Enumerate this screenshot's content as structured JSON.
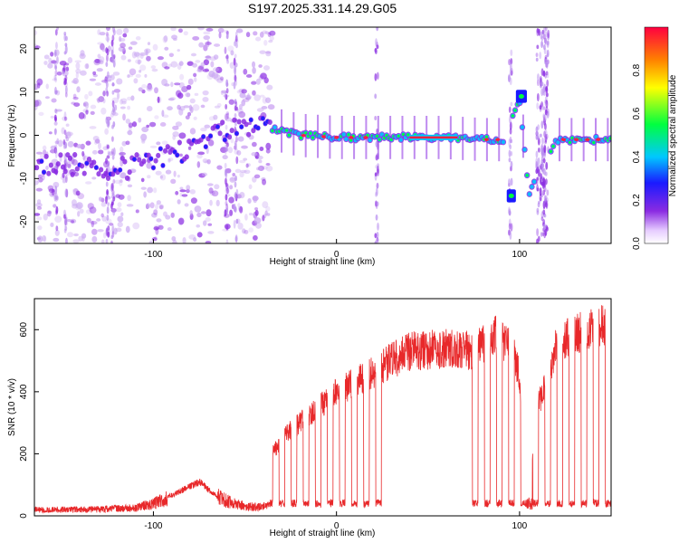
{
  "title": "S197.2025.331.14.29.G05",
  "colors": {
    "snr_line": "#e8282a",
    "spectro_rim": "#8a2be2",
    "background": "#ffffff"
  },
  "chart_data": [
    {
      "type": "heatmap",
      "name": "spectrogram",
      "xlabel": "Height of straight line (km)",
      "ylabel": "Frequency (Hz)",
      "xlim": [
        -165,
        150
      ],
      "ylim": [
        -25,
        25
      ],
      "x_ticks": [
        -100,
        0,
        100
      ],
      "y_ticks": [
        -20,
        -10,
        0,
        10,
        20
      ],
      "colorbar": {
        "label": "Normalized spectral amplitude",
        "range": [
          0,
          1
        ],
        "ticks": [
          "0.0",
          "0.2",
          "0.4",
          "0.6",
          "0.8"
        ],
        "colormap": "rainbow"
      },
      "ridge": {
        "x": [
          -165,
          -140,
          -120,
          -100,
          -80,
          -60,
          -45,
          -30,
          -20,
          0,
          20,
          40,
          60,
          80,
          92,
          100,
          105,
          120,
          150
        ],
        "y": [
          -7,
          -7,
          -8,
          -6,
          -3,
          1,
          3,
          1,
          0,
          -0.5,
          -0.5,
          -0.5,
          -0.5,
          -1,
          -1,
          9,
          -14,
          -1,
          -1
        ]
      },
      "gaps_km": [
        [
          92,
          96
        ],
        [
          108,
          117
        ]
      ],
      "side_bands": [
        {
          "x": [
            93,
            98
          ],
          "y": -14
        },
        {
          "x": [
            98,
            104
          ],
          "y": 9
        }
      ]
    },
    {
      "type": "line",
      "name": "snr",
      "xlabel": "Height of straight line (km)",
      "ylabel": "SNR (10 * v/v)",
      "xlim": [
        -165,
        150
      ],
      "ylim": [
        0,
        700
      ],
      "x_ticks": [
        -100,
        0,
        100
      ],
      "y_ticks": [
        0,
        200,
        400,
        600
      ],
      "envelope": {
        "x": [
          -165,
          -140,
          -110,
          -100,
          -85,
          -75,
          -65,
          -50,
          -38,
          -35,
          -30,
          -20,
          -10,
          0,
          10,
          20,
          30,
          40,
          60,
          75,
          85,
          95,
          100,
          105,
          110,
          120,
          130,
          140,
          150
        ],
        "y": [
          20,
          20,
          25,
          40,
          80,
          110,
          60,
          30,
          30,
          200,
          250,
          300,
          350,
          400,
          430,
          460,
          500,
          530,
          540,
          530,
          580,
          560,
          450,
          50,
          350,
          550,
          580,
          600,
          620
        ]
      },
      "dropout_region_km": [
        -38,
        150
      ],
      "dropout_floor": 40
    }
  ]
}
